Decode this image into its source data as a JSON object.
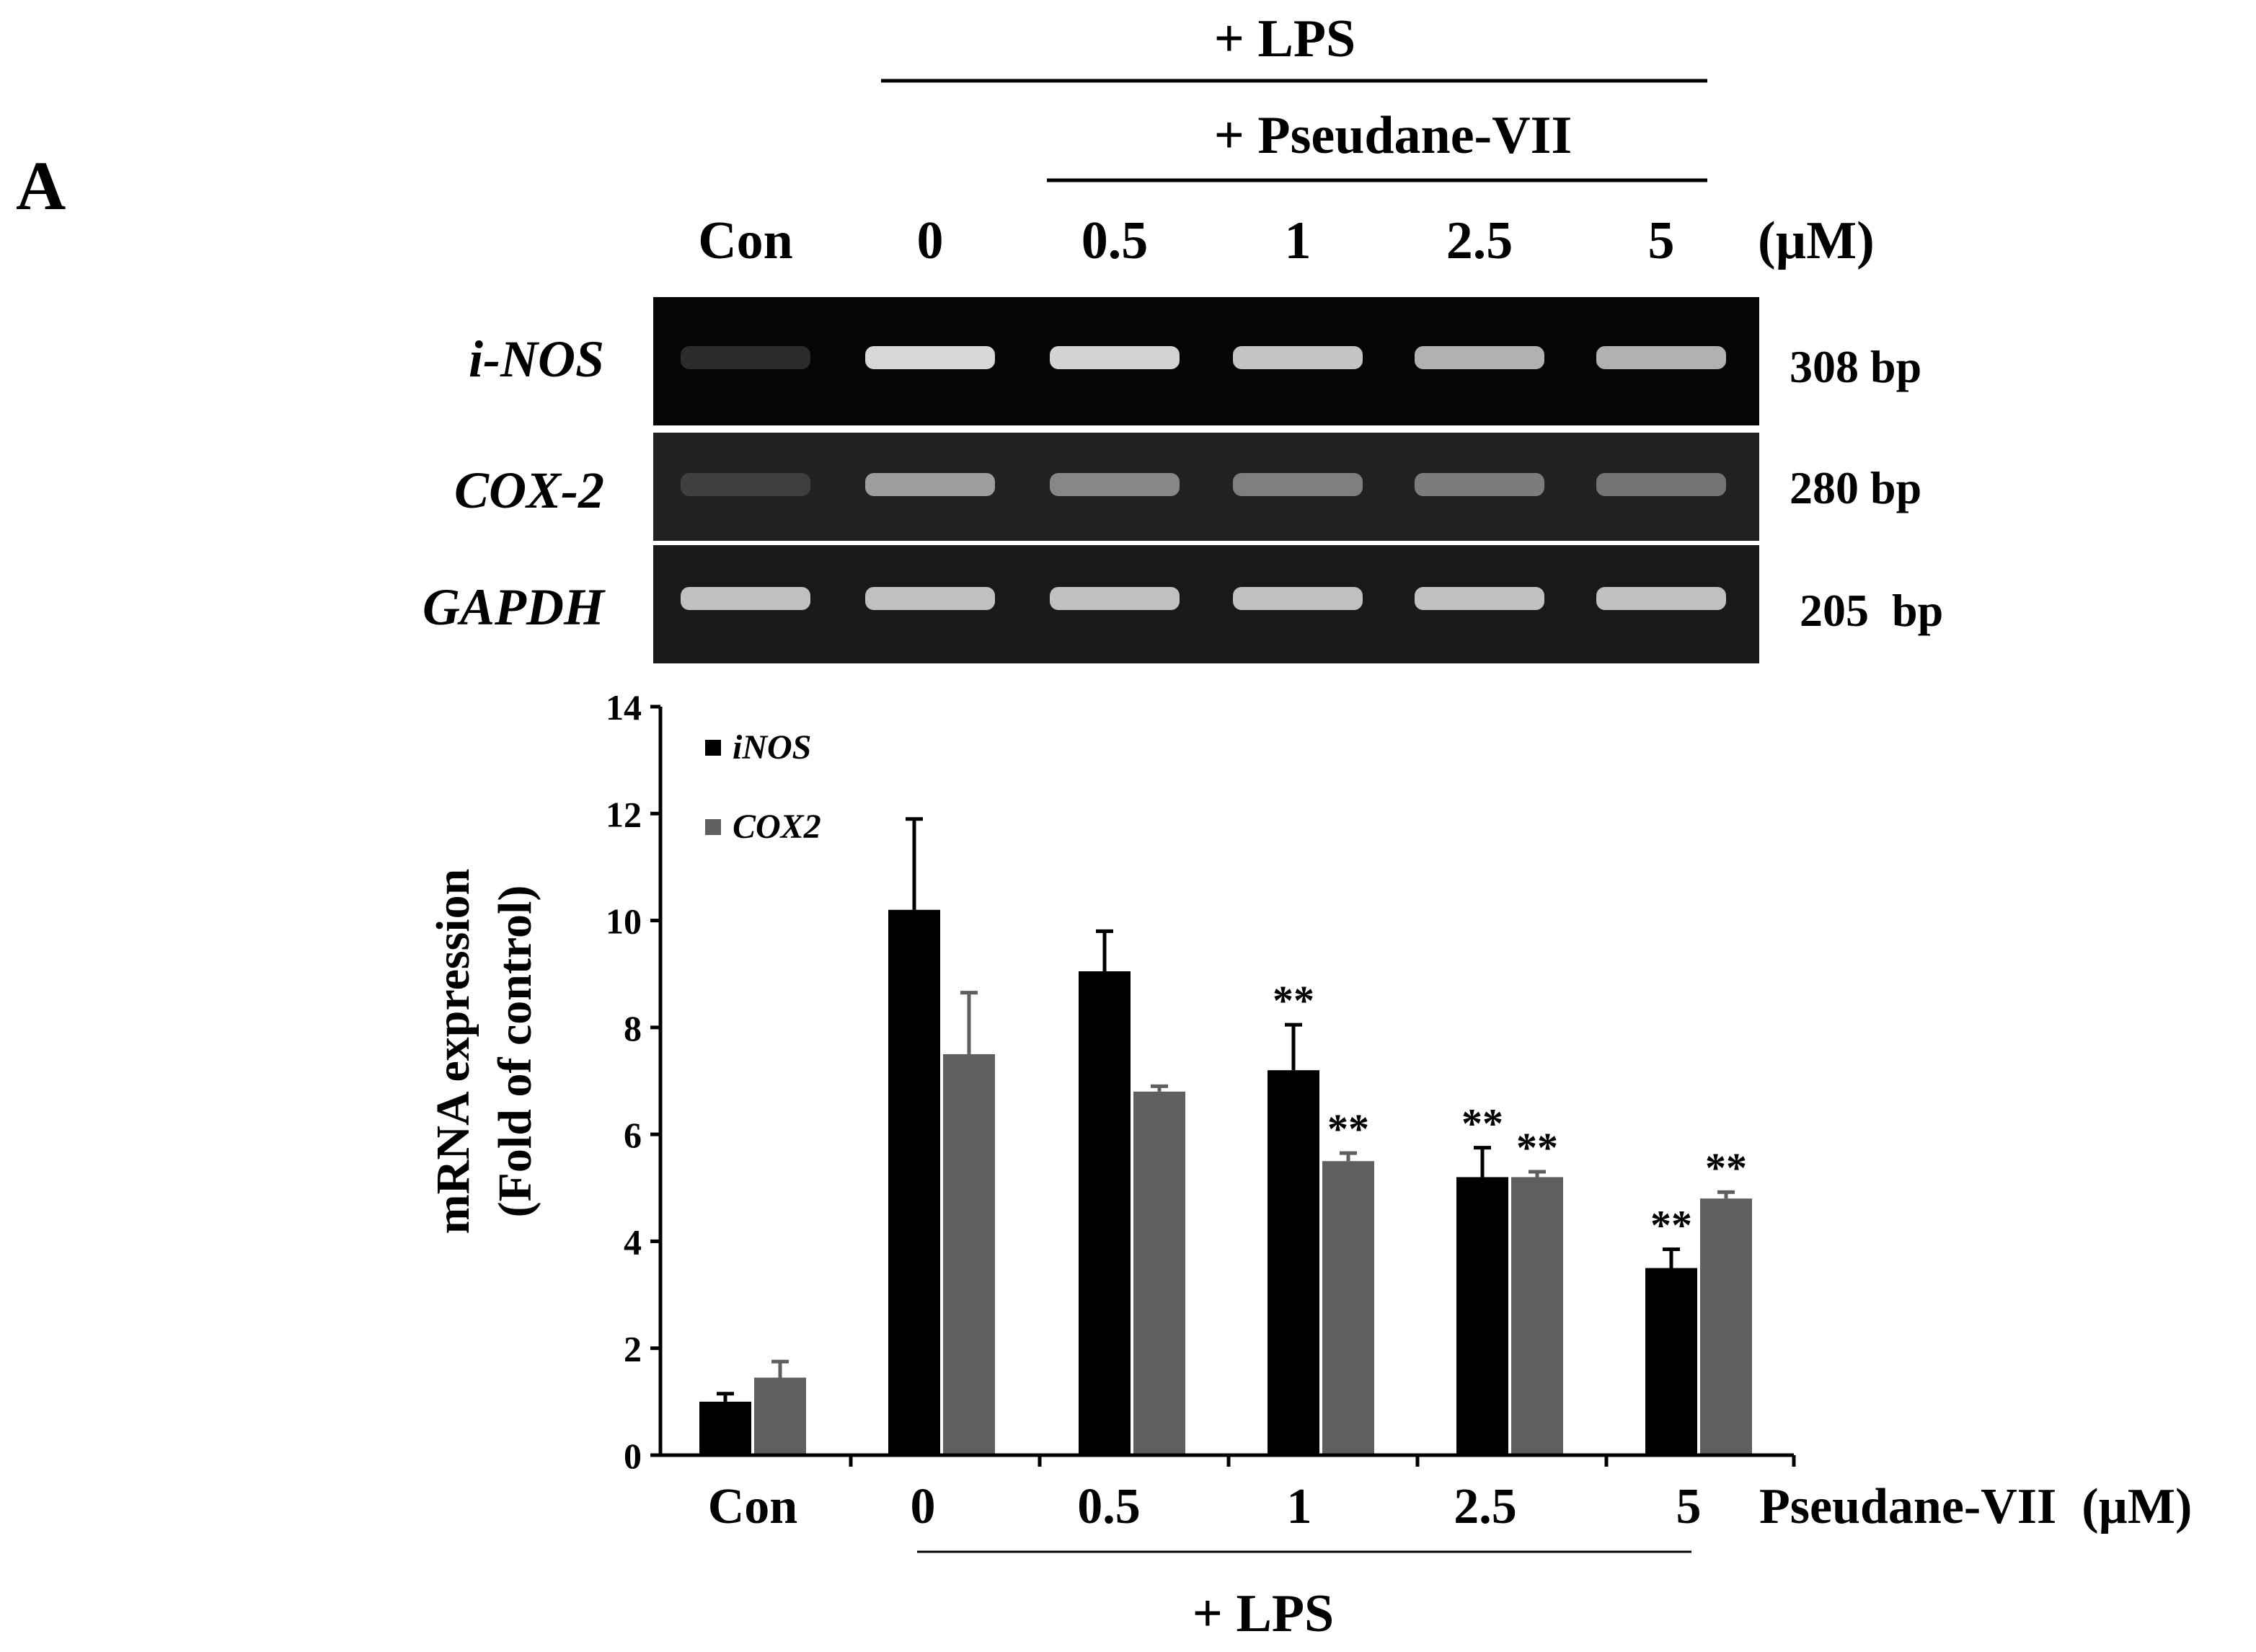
{
  "panel_label": "A",
  "header": {
    "lps_label": "+ LPS",
    "treatment_label": "+ Pseudane-VII",
    "unit_label": "(µM)",
    "lanes": [
      "Con",
      "0",
      "0.5",
      "1",
      "2.5",
      "5"
    ]
  },
  "gel": {
    "rows": [
      {
        "gene": "i-NOS",
        "size": "308 bp",
        "band_intensity": [
          0.02,
          0.92,
          0.9,
          0.82,
          0.72,
          0.72
        ],
        "background": "#050505"
      },
      {
        "gene": "COX-2",
        "size": "280 bp",
        "band_intensity": [
          0.12,
          0.62,
          0.5,
          0.46,
          0.44,
          0.4
        ],
        "background": "#222222"
      },
      {
        "gene": "GAPDH",
        "size": "205  bp",
        "band_intensity": [
          0.8,
          0.8,
          0.8,
          0.8,
          0.8,
          0.8
        ],
        "background": "#191919"
      }
    ]
  },
  "chart_data": {
    "type": "bar",
    "categories": [
      "Con",
      "0",
      "0.5",
      "1",
      "2.5",
      "5"
    ],
    "series": [
      {
        "name": "iNOS",
        "color": "#000000",
        "values": [
          1.0,
          10.2,
          9.05,
          7.2,
          5.2,
          3.5
        ],
        "errors": [
          0.15,
          1.7,
          0.75,
          0.85,
          0.55,
          0.35
        ],
        "significance": [
          "",
          "",
          "",
          "**",
          "**",
          "**"
        ]
      },
      {
        "name": "COX2",
        "color": "#5f5f5f",
        "values": [
          1.45,
          7.5,
          6.8,
          5.5,
          5.2,
          4.8
        ],
        "errors": [
          0.3,
          1.15,
          0.1,
          0.15,
          0.1,
          0.12
        ],
        "significance": [
          "",
          "",
          "",
          "**",
          "**",
          "**"
        ]
      }
    ],
    "ylim": [
      0,
      14
    ],
    "yticks": [
      0,
      2,
      4,
      6,
      8,
      10,
      12,
      14
    ],
    "ylabel_line1": "mRNA expression",
    "ylabel_line2": "(Fold of control)",
    "xlabel": "Pseudane-VII  (µM)",
    "bottom_label": "+ LPS",
    "legend_position": "top-left",
    "grid": false
  }
}
